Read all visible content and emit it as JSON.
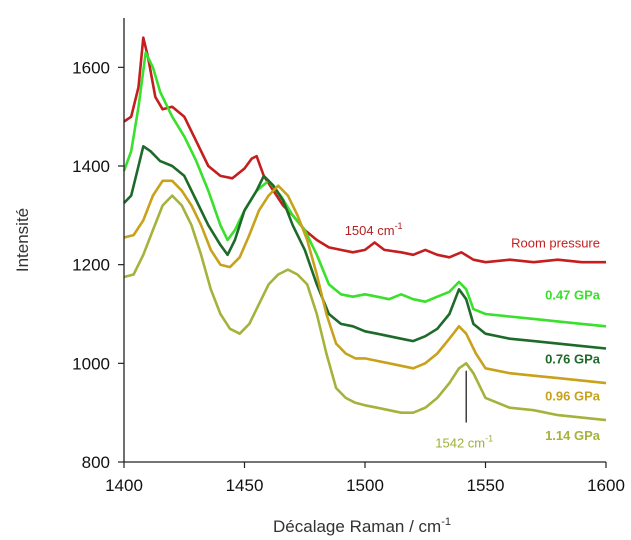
{
  "chart_data": {
    "type": "line",
    "xlabel": "Décalage Raman / cm",
    "xlabel_sup": "-1",
    "ylabel": "Intensité",
    "xlim": [
      1400,
      1600
    ],
    "ylim": [
      800,
      1700
    ],
    "x_ticks": [
      "1400",
      "1450",
      "1500",
      "1550",
      "1600"
    ],
    "y_ticks": [
      "800",
      "1000",
      "1200",
      "1400",
      "1600"
    ],
    "grid": false,
    "legend": "labels placed at right end of each curve",
    "annotations": [
      {
        "text": "1504 cm",
        "sup": "-1",
        "x": 1504,
        "y": 1270,
        "color": "#b52020"
      },
      {
        "text": "1542 cm",
        "sup": "-1",
        "x": 1542,
        "y": 840,
        "color": "#9fb03a"
      }
    ],
    "series": [
      {
        "name": "Room pressure",
        "color": "#c41e1e",
        "label_y": 1245,
        "label_bold": false,
        "points": [
          [
            1400,
            1490
          ],
          [
            1403,
            1500
          ],
          [
            1406,
            1560
          ],
          [
            1408,
            1660
          ],
          [
            1410,
            1620
          ],
          [
            1413,
            1540
          ],
          [
            1416,
            1515
          ],
          [
            1420,
            1520
          ],
          [
            1425,
            1500
          ],
          [
            1430,
            1450
          ],
          [
            1435,
            1400
          ],
          [
            1440,
            1380
          ],
          [
            1445,
            1375
          ],
          [
            1450,
            1395
          ],
          [
            1453,
            1415
          ],
          [
            1455,
            1420
          ],
          [
            1458,
            1380
          ],
          [
            1462,
            1350
          ],
          [
            1466,
            1320
          ],
          [
            1470,
            1300
          ],
          [
            1475,
            1270
          ],
          [
            1480,
            1250
          ],
          [
            1485,
            1235
          ],
          [
            1490,
            1230
          ],
          [
            1495,
            1225
          ],
          [
            1500,
            1230
          ],
          [
            1504,
            1245
          ],
          [
            1508,
            1230
          ],
          [
            1515,
            1225
          ],
          [
            1520,
            1220
          ],
          [
            1525,
            1230
          ],
          [
            1530,
            1220
          ],
          [
            1535,
            1215
          ],
          [
            1540,
            1225
          ],
          [
            1545,
            1210
          ],
          [
            1550,
            1205
          ],
          [
            1560,
            1210
          ],
          [
            1570,
            1205
          ],
          [
            1580,
            1210
          ],
          [
            1590,
            1205
          ],
          [
            1600,
            1205
          ]
        ]
      },
      {
        "name": "0.47 GPa",
        "color": "#39e02c",
        "label_y": 1140,
        "label_bold": true,
        "points": [
          [
            1400,
            1390
          ],
          [
            1403,
            1430
          ],
          [
            1406,
            1520
          ],
          [
            1409,
            1630
          ],
          [
            1412,
            1600
          ],
          [
            1415,
            1550
          ],
          [
            1420,
            1500
          ],
          [
            1425,
            1460
          ],
          [
            1430,
            1410
          ],
          [
            1435,
            1350
          ],
          [
            1440,
            1280
          ],
          [
            1443,
            1250
          ],
          [
            1446,
            1270
          ],
          [
            1450,
            1310
          ],
          [
            1455,
            1350
          ],
          [
            1460,
            1370
          ],
          [
            1465,
            1340
          ],
          [
            1470,
            1300
          ],
          [
            1475,
            1270
          ],
          [
            1480,
            1220
          ],
          [
            1485,
            1160
          ],
          [
            1490,
            1140
          ],
          [
            1495,
            1135
          ],
          [
            1500,
            1140
          ],
          [
            1505,
            1135
          ],
          [
            1510,
            1130
          ],
          [
            1515,
            1140
          ],
          [
            1520,
            1130
          ],
          [
            1525,
            1125
          ],
          [
            1530,
            1135
          ],
          [
            1535,
            1145
          ],
          [
            1539,
            1165
          ],
          [
            1542,
            1150
          ],
          [
            1545,
            1110
          ],
          [
            1550,
            1100
          ],
          [
            1560,
            1095
          ],
          [
            1570,
            1090
          ],
          [
            1580,
            1085
          ],
          [
            1590,
            1080
          ],
          [
            1600,
            1075
          ]
        ]
      },
      {
        "name": "0.76 GPa",
        "color": "#1e6a2a",
        "label_y": 1010,
        "label_bold": true,
        "points": [
          [
            1400,
            1325
          ],
          [
            1403,
            1340
          ],
          [
            1406,
            1400
          ],
          [
            1408,
            1440
          ],
          [
            1411,
            1430
          ],
          [
            1415,
            1410
          ],
          [
            1420,
            1400
          ],
          [
            1425,
            1380
          ],
          [
            1430,
            1330
          ],
          [
            1435,
            1280
          ],
          [
            1440,
            1240
          ],
          [
            1443,
            1220
          ],
          [
            1446,
            1250
          ],
          [
            1450,
            1310
          ],
          [
            1455,
            1350
          ],
          [
            1458,
            1380
          ],
          [
            1462,
            1360
          ],
          [
            1466,
            1330
          ],
          [
            1470,
            1280
          ],
          [
            1475,
            1230
          ],
          [
            1480,
            1160
          ],
          [
            1485,
            1100
          ],
          [
            1490,
            1080
          ],
          [
            1495,
            1075
          ],
          [
            1500,
            1065
          ],
          [
            1505,
            1060
          ],
          [
            1510,
            1055
          ],
          [
            1515,
            1050
          ],
          [
            1520,
            1045
          ],
          [
            1525,
            1055
          ],
          [
            1530,
            1070
          ],
          [
            1535,
            1100
          ],
          [
            1539,
            1150
          ],
          [
            1542,
            1130
          ],
          [
            1545,
            1080
          ],
          [
            1550,
            1060
          ],
          [
            1560,
            1050
          ],
          [
            1570,
            1045
          ],
          [
            1580,
            1040
          ],
          [
            1590,
            1035
          ],
          [
            1600,
            1030
          ]
        ]
      },
      {
        "name": "0.96 GPa",
        "color": "#c7a21a",
        "label_y": 935,
        "label_bold": true,
        "points": [
          [
            1400,
            1255
          ],
          [
            1404,
            1260
          ],
          [
            1408,
            1290
          ],
          [
            1412,
            1340
          ],
          [
            1416,
            1370
          ],
          [
            1420,
            1370
          ],
          [
            1424,
            1350
          ],
          [
            1428,
            1320
          ],
          [
            1432,
            1280
          ],
          [
            1436,
            1230
          ],
          [
            1440,
            1200
          ],
          [
            1444,
            1195
          ],
          [
            1448,
            1215
          ],
          [
            1452,
            1260
          ],
          [
            1456,
            1310
          ],
          [
            1460,
            1340
          ],
          [
            1464,
            1360
          ],
          [
            1468,
            1340
          ],
          [
            1472,
            1300
          ],
          [
            1476,
            1250
          ],
          [
            1480,
            1180
          ],
          [
            1484,
            1100
          ],
          [
            1488,
            1040
          ],
          [
            1492,
            1020
          ],
          [
            1496,
            1010
          ],
          [
            1500,
            1010
          ],
          [
            1505,
            1005
          ],
          [
            1510,
            1000
          ],
          [
            1515,
            995
          ],
          [
            1520,
            990
          ],
          [
            1525,
            1000
          ],
          [
            1530,
            1020
          ],
          [
            1535,
            1050
          ],
          [
            1539,
            1075
          ],
          [
            1542,
            1060
          ],
          [
            1546,
            1020
          ],
          [
            1550,
            990
          ],
          [
            1560,
            980
          ],
          [
            1570,
            975
          ],
          [
            1580,
            970
          ],
          [
            1590,
            965
          ],
          [
            1600,
            960
          ]
        ]
      },
      {
        "name": "1.14 GPa",
        "color": "#a5b23c",
        "label_y": 855,
        "label_bold": true,
        "points": [
          [
            1400,
            1175
          ],
          [
            1404,
            1180
          ],
          [
            1408,
            1220
          ],
          [
            1412,
            1270
          ],
          [
            1416,
            1320
          ],
          [
            1420,
            1340
          ],
          [
            1424,
            1320
          ],
          [
            1428,
            1280
          ],
          [
            1432,
            1220
          ],
          [
            1436,
            1150
          ],
          [
            1440,
            1100
          ],
          [
            1444,
            1070
          ],
          [
            1448,
            1060
          ],
          [
            1452,
            1080
          ],
          [
            1456,
            1120
          ],
          [
            1460,
            1160
          ],
          [
            1464,
            1180
          ],
          [
            1468,
            1190
          ],
          [
            1472,
            1180
          ],
          [
            1476,
            1160
          ],
          [
            1480,
            1100
          ],
          [
            1484,
            1020
          ],
          [
            1488,
            950
          ],
          [
            1492,
            930
          ],
          [
            1496,
            920
          ],
          [
            1500,
            915
          ],
          [
            1505,
            910
          ],
          [
            1510,
            905
          ],
          [
            1515,
            900
          ],
          [
            1520,
            900
          ],
          [
            1525,
            910
          ],
          [
            1530,
            930
          ],
          [
            1535,
            960
          ],
          [
            1539,
            990
          ],
          [
            1542,
            1000
          ],
          [
            1545,
            980
          ],
          [
            1550,
            930
          ],
          [
            1560,
            910
          ],
          [
            1570,
            905
          ],
          [
            1580,
            895
          ],
          [
            1590,
            890
          ],
          [
            1600,
            885
          ]
        ]
      }
    ]
  }
}
